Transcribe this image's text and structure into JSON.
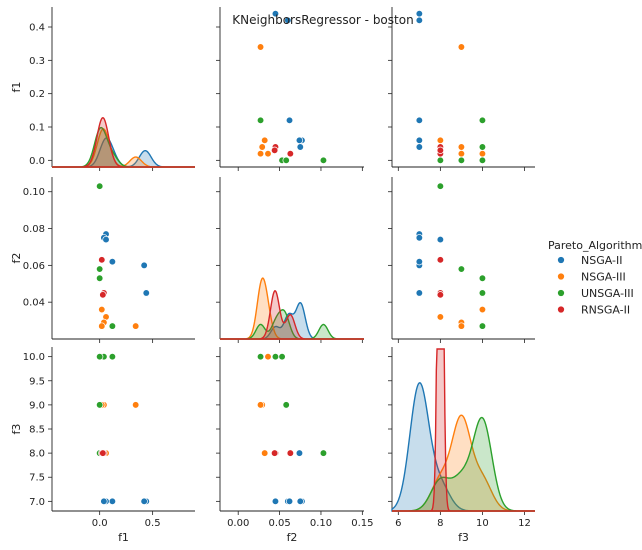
{
  "chart_data": {
    "type": "pairplot",
    "title": "KNeighborsRegressor - boston",
    "variables": [
      "f1",
      "f2",
      "f3"
    ],
    "legend": {
      "title": "Pareto_Algorithm",
      "placement": "right",
      "entries": [
        "NSGA-II",
        "NSGA-III",
        "UNSGA-III",
        "RNSGA-II"
      ]
    },
    "colors": {
      "NSGA-II": "#1f77b4",
      "NSGA-III": "#ff7f0e",
      "UNSGA-III": "#2ca02c",
      "RNSGA-II": "#d62728"
    },
    "axes": {
      "f1": {
        "range": [
          -0.45,
          0.9
        ],
        "ticks": [
          "0.0",
          "0.5"
        ],
        "tick_values": [
          0.0,
          0.5
        ],
        "col_range": [
          -0.45,
          0.9
        ]
      },
      "f2": {
        "range": [
          0.02,
          0.108
        ],
        "ticks": [
          "0.04",
          "0.06",
          "0.08",
          "0.10"
        ],
        "tick_values": [
          0.04,
          0.06,
          0.08,
          0.1
        ],
        "col_range": [
          -0.022,
          0.152
        ],
        "col_ticks": [
          "0.00",
          "0.05",
          "0.10",
          "0.15"
        ],
        "col_tick_values": [
          0.0,
          0.05,
          0.1,
          0.15
        ]
      },
      "f3": {
        "range": [
          6.8,
          10.2
        ],
        "ticks": [
          "7.0",
          "7.5",
          "8.0",
          "8.5",
          "9.0",
          "9.5",
          "10.0"
        ],
        "tick_values": [
          7.0,
          7.5,
          8.0,
          8.5,
          9.0,
          9.5,
          10.0
        ],
        "col_range": [
          5.7,
          12.5
        ],
        "col_ticks": [
          "6",
          "8",
          "10",
          "12"
        ],
        "col_tick_values": [
          6,
          8,
          10,
          12
        ]
      },
      "f1_row": {
        "range": [
          -0.02,
          0.46
        ],
        "ticks": [
          "0.0",
          "0.1",
          "0.2",
          "0.3",
          "0.4"
        ],
        "tick_values": [
          0.0,
          0.1,
          0.2,
          0.3,
          0.4
        ]
      }
    },
    "series": [
      {
        "name": "NSGA-II",
        "points": [
          {
            "f1": 0.44,
            "f2": 0.045,
            "f3": 7
          },
          {
            "f1": 0.42,
            "f2": 0.06,
            "f3": 7
          },
          {
            "f1": 0.12,
            "f2": 0.062,
            "f3": 7
          },
          {
            "f1": 0.06,
            "f2": 0.077,
            "f3": 7
          },
          {
            "f1": 0.04,
            "f2": 0.075,
            "f3": 7
          },
          {
            "f1": 0.06,
            "f2": 0.074,
            "f3": 8
          }
        ]
      },
      {
        "name": "NSGA-III",
        "points": [
          {
            "f1": 0.34,
            "f2": 0.027,
            "f3": 9
          },
          {
            "f1": 0.06,
            "f2": 0.032,
            "f3": 8
          },
          {
            "f1": 0.04,
            "f2": 0.029,
            "f3": 9
          },
          {
            "f1": 0.02,
            "f2": 0.027,
            "f3": 9
          },
          {
            "f1": 0.02,
            "f2": 0.036,
            "f3": 10
          }
        ]
      },
      {
        "name": "UNSGA-III",
        "points": [
          {
            "f1": 0.12,
            "f2": 0.027,
            "f3": 10
          },
          {
            "f1": 0.04,
            "f2": 0.045,
            "f3": 10
          },
          {
            "f1": 0.0,
            "f2": 0.053,
            "f3": 10
          },
          {
            "f1": 0.0,
            "f2": 0.058,
            "f3": 9
          },
          {
            "f1": 0.0,
            "f2": 0.103,
            "f3": 8
          }
        ]
      },
      {
        "name": "RNSGA-II",
        "points": [
          {
            "f1": 0.04,
            "f2": 0.045,
            "f3": 8
          },
          {
            "f1": 0.02,
            "f2": 0.063,
            "f3": 8
          },
          {
            "f1": 0.03,
            "f2": 0.044,
            "f3": 8
          }
        ]
      }
    ]
  }
}
